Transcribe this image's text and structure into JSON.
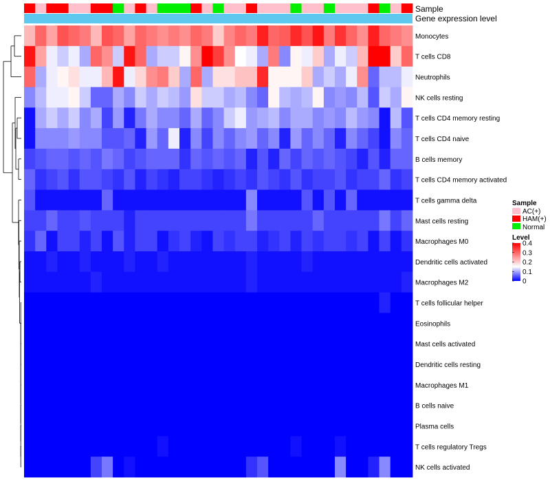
{
  "chart_data": {
    "type": "heatmap",
    "title": "",
    "annotation_tracks": [
      {
        "label": "Sample",
        "key": "sample_groups"
      },
      {
        "label": "Gene expression level",
        "key": "gene_level"
      }
    ],
    "sample_groups": [
      "HAM(+)",
      "AC(+)",
      "HAM(+)",
      "HAM(+)",
      "AC(+)",
      "AC(+)",
      "HAM(+)",
      "HAM(+)",
      "Normal",
      "AC(+)",
      "HAM(+)",
      "AC(+)",
      "Normal",
      "Normal",
      "Normal",
      "HAM(+)",
      "AC(+)",
      "Normal",
      "AC(+)",
      "AC(+)",
      "HAM(+)",
      "AC(+)",
      "AC(+)",
      "AC(+)",
      "Normal",
      "AC(+)",
      "AC(+)",
      "Normal",
      "AC(+)",
      "AC(+)",
      "AC(+)",
      "HAM(+)",
      "Normal",
      "AC(+)",
      "HAM(+)"
    ],
    "gene_level": "constant",
    "rows": [
      "Monocytes",
      "T cells CD8",
      "Neutrophils",
      "NK cells resting",
      "T cells CD4 memory resting",
      "T cells CD4 naive",
      "B cells memory",
      "T cells CD4 memory activated",
      "T cells gamma delta",
      "Mast cells resting",
      "Macrophages M0",
      "Dendritic cells activated",
      "Macrophages M2",
      "T cells follicular helper",
      "Eosinophils",
      "Mast cells activated",
      "Dendritic cells resting",
      "Macrophages M1",
      "B cells naive",
      "Plasma cells",
      "T cells regulatory  Tregs",
      "NK cells activated"
    ],
    "values": [
      [
        0.22,
        0.3,
        0.24,
        0.32,
        0.3,
        0.28,
        0.22,
        0.32,
        0.3,
        0.24,
        0.3,
        0.28,
        0.26,
        0.28,
        0.26,
        0.3,
        0.28,
        0.2,
        0.27,
        0.3,
        0.28,
        0.37,
        0.3,
        0.31,
        0.36,
        0.32,
        0.38,
        0.28,
        0.35,
        0.3,
        0.26,
        0.37,
        0.3,
        0.28,
        0.26
      ],
      [
        0.38,
        0.24,
        0.14,
        0.12,
        0.14,
        0.1,
        0.3,
        0.26,
        0.12,
        0.38,
        0.3,
        0.1,
        0.12,
        0.12,
        0.16,
        0.26,
        0.4,
        0.34,
        0.26,
        0.15,
        0.14,
        0.1,
        0.28,
        0.08,
        0.16,
        0.14,
        0.2,
        0.1,
        0.14,
        0.12,
        0.22,
        0.4,
        0.4,
        0.2,
        0.3
      ],
      [
        0.3,
        0.1,
        0.14,
        0.16,
        0.18,
        0.14,
        0.14,
        0.22,
        0.38,
        0.14,
        0.19,
        0.26,
        0.28,
        0.2,
        0.1,
        0.3,
        0.1,
        0.18,
        0.18,
        0.21,
        0.21,
        0.36,
        0.16,
        0.16,
        0.16,
        0.2,
        0.1,
        0.12,
        0.1,
        0.14,
        0.26,
        0.06,
        0.11,
        0.11,
        0.14
      ],
      [
        0.08,
        0.11,
        0.14,
        0.14,
        0.16,
        0.12,
        0.06,
        0.06,
        0.1,
        0.08,
        0.12,
        0.1,
        0.12,
        0.11,
        0.09,
        0.18,
        0.12,
        0.12,
        0.1,
        0.11,
        0.08,
        0.06,
        0.16,
        0.11,
        0.1,
        0.11,
        0.16,
        0.08,
        0.09,
        0.08,
        0.11,
        0.05,
        0.12,
        0.1,
        0.16
      ],
      [
        0.01,
        0.1,
        0.12,
        0.1,
        0.12,
        0.08,
        0.1,
        0.04,
        0.09,
        0.02,
        0.07,
        0.1,
        0.08,
        0.08,
        0.06,
        0.1,
        0.06,
        0.08,
        0.12,
        0.14,
        0.09,
        0.1,
        0.11,
        0.08,
        0.1,
        0.1,
        0.08,
        0.09,
        0.08,
        0.11,
        0.09,
        0.08,
        0.01,
        0.11,
        0.05
      ],
      [
        0.01,
        0.08,
        0.08,
        0.08,
        0.09,
        0.08,
        0.08,
        0.05,
        0.05,
        0.06,
        0.02,
        0.09,
        0.06,
        0.14,
        0.02,
        0.08,
        0.04,
        0.08,
        0.06,
        0.08,
        0.09,
        0.06,
        0.08,
        0.02,
        0.09,
        0.06,
        0.08,
        0.06,
        0.02,
        0.08,
        0.06,
        0.04,
        0.01,
        0.08,
        0.06
      ],
      [
        0.04,
        0.05,
        0.06,
        0.06,
        0.05,
        0.06,
        0.05,
        0.07,
        0.06,
        0.04,
        0.05,
        0.06,
        0.06,
        0.06,
        0.03,
        0.06,
        0.05,
        0.06,
        0.05,
        0.06,
        0.02,
        0.05,
        0.02,
        0.06,
        0.04,
        0.06,
        0.05,
        0.06,
        0.05,
        0.04,
        0.02,
        0.05,
        0.02,
        0.06,
        0.06
      ],
      [
        0.06,
        0.03,
        0.04,
        0.05,
        0.03,
        0.05,
        0.05,
        0.04,
        0.03,
        0.05,
        0.02,
        0.04,
        0.03,
        0.02,
        0.04,
        0.04,
        0.03,
        0.02,
        0.03,
        0.04,
        0.03,
        0.05,
        0.04,
        0.03,
        0.05,
        0.03,
        0.04,
        0.04,
        0.05,
        0.03,
        0.04,
        0.04,
        0.06,
        0.03,
        0.04
      ],
      [
        0.05,
        0.01,
        0.01,
        0.01,
        0.01,
        0.01,
        0.01,
        0.06,
        0.01,
        0.01,
        0.01,
        0.01,
        0.01,
        0.01,
        0.01,
        0.01,
        0.01,
        0.01,
        0.01,
        0.01,
        0.08,
        0.01,
        0.01,
        0.01,
        0.01,
        0.05,
        0.01,
        0.05,
        0.01,
        0.06,
        0.01,
        0.01,
        0.01,
        0.01,
        0.01
      ],
      [
        0.04,
        0.04,
        0.06,
        0.04,
        0.04,
        0.05,
        0.04,
        0.04,
        0.04,
        0.02,
        0.04,
        0.04,
        0.04,
        0.04,
        0.04,
        0.04,
        0.04,
        0.04,
        0.04,
        0.04,
        0.07,
        0.04,
        0.04,
        0.04,
        0.04,
        0.04,
        0.06,
        0.04,
        0.04,
        0.04,
        0.04,
        0.04,
        0.07,
        0.04,
        0.06
      ],
      [
        0.03,
        0.06,
        0.01,
        0.04,
        0.04,
        0.02,
        0.04,
        0.01,
        0.05,
        0.02,
        0.04,
        0.04,
        0.01,
        0.03,
        0.04,
        0.02,
        0.01,
        0.04,
        0.03,
        0.04,
        0.04,
        0.02,
        0.03,
        0.04,
        0.02,
        0.04,
        0.03,
        0.04,
        0.04,
        0.03,
        0.04,
        0.01,
        0.04,
        0.01,
        0.03
      ],
      [
        0.01,
        0.01,
        0.02,
        0.01,
        0.01,
        0.02,
        0.01,
        0.01,
        0.01,
        0.02,
        0.01,
        0.01,
        0.02,
        0.01,
        0.01,
        0.01,
        0.01,
        0.01,
        0.01,
        0.01,
        0.02,
        0.01,
        0.01,
        0.01,
        0.01,
        0.02,
        0.01,
        0.01,
        0.01,
        0.01,
        0.01,
        0.01,
        0.01,
        0.01,
        0.01
      ],
      [
        0.01,
        0.01,
        0.01,
        0.01,
        0.01,
        0.01,
        0.02,
        0.01,
        0.01,
        0.01,
        0.01,
        0.01,
        0.01,
        0.01,
        0.01,
        0.01,
        0.01,
        0.01,
        0.01,
        0.01,
        0.02,
        0.01,
        0.01,
        0.01,
        0.01,
        0.01,
        0.01,
        0.01,
        0.01,
        0.01,
        0.01,
        0.01,
        0.01,
        0.01,
        0.02
      ],
      [
        0.0,
        0.0,
        0.0,
        0.0,
        0.0,
        0.0,
        0.0,
        0.0,
        0.0,
        0.0,
        0.0,
        0.0,
        0.0,
        0.0,
        0.0,
        0.0,
        0.0,
        0.0,
        0.0,
        0.0,
        0.0,
        0.0,
        0.0,
        0.0,
        0.0,
        0.0,
        0.0,
        0.0,
        0.0,
        0.0,
        0.0,
        0.0,
        0.02,
        0.0,
        0.0
      ],
      [
        0.0,
        0.0,
        0.0,
        0.0,
        0.0,
        0.0,
        0.0,
        0.0,
        0.0,
        0.0,
        0.0,
        0.0,
        0.0,
        0.0,
        0.0,
        0.0,
        0.0,
        0.0,
        0.0,
        0.0,
        0.0,
        0.0,
        0.0,
        0.0,
        0.0,
        0.0,
        0.0,
        0.0,
        0.0,
        0.0,
        0.0,
        0.0,
        0.0,
        0.0,
        0.0
      ],
      [
        0.0,
        0.0,
        0.0,
        0.0,
        0.0,
        0.0,
        0.0,
        0.0,
        0.0,
        0.0,
        0.0,
        0.0,
        0.0,
        0.0,
        0.0,
        0.0,
        0.0,
        0.0,
        0.0,
        0.0,
        0.0,
        0.0,
        0.0,
        0.0,
        0.0,
        0.0,
        0.0,
        0.0,
        0.0,
        0.0,
        0.0,
        0.0,
        0.0,
        0.0,
        0.0
      ],
      [
        0.0,
        0.0,
        0.0,
        0.0,
        0.0,
        0.0,
        0.0,
        0.0,
        0.0,
        0.0,
        0.0,
        0.0,
        0.0,
        0.0,
        0.0,
        0.0,
        0.0,
        0.0,
        0.0,
        0.0,
        0.0,
        0.0,
        0.0,
        0.0,
        0.0,
        0.0,
        0.0,
        0.0,
        0.0,
        0.0,
        0.0,
        0.0,
        0.0,
        0.0,
        0.0
      ],
      [
        0.0,
        0.0,
        0.0,
        0.0,
        0.0,
        0.0,
        0.0,
        0.0,
        0.0,
        0.0,
        0.0,
        0.0,
        0.0,
        0.0,
        0.0,
        0.0,
        0.0,
        0.0,
        0.0,
        0.0,
        0.0,
        0.0,
        0.0,
        0.0,
        0.0,
        0.0,
        0.0,
        0.0,
        0.0,
        0.0,
        0.0,
        0.0,
        0.0,
        0.0,
        0.0
      ],
      [
        0.0,
        0.0,
        0.0,
        0.0,
        0.0,
        0.0,
        0.0,
        0.0,
        0.0,
        0.0,
        0.0,
        0.0,
        0.0,
        0.0,
        0.0,
        0.0,
        0.0,
        0.0,
        0.0,
        0.0,
        0.0,
        0.0,
        0.0,
        0.0,
        0.0,
        0.0,
        0.0,
        0.0,
        0.0,
        0.0,
        0.0,
        0.0,
        0.0,
        0.0,
        0.0
      ],
      [
        0.0,
        0.0,
        0.0,
        0.0,
        0.0,
        0.0,
        0.0,
        0.0,
        0.0,
        0.0,
        0.0,
        0.0,
        0.0,
        0.0,
        0.0,
        0.0,
        0.0,
        0.0,
        0.0,
        0.0,
        0.0,
        0.0,
        0.0,
        0.0,
        0.0,
        0.0,
        0.0,
        0.0,
        0.0,
        0.0,
        0.0,
        0.0,
        0.0,
        0.0,
        0.0
      ],
      [
        0.0,
        0.0,
        0.0,
        0.0,
        0.0,
        0.0,
        0.0,
        0.0,
        0.0,
        0.0,
        0.0,
        0.0,
        0.01,
        0.0,
        0.0,
        0.0,
        0.0,
        0.0,
        0.0,
        0.0,
        0.0,
        0.0,
        0.0,
        0.0,
        0.01,
        0.0,
        0.0,
        0.0,
        0.01,
        0.0,
        0.0,
        0.0,
        0.0,
        0.0,
        0.0
      ],
      [
        0.0,
        0.0,
        0.0,
        0.0,
        0.0,
        0.0,
        0.04,
        0.07,
        0.0,
        0.01,
        0.0,
        0.0,
        0.0,
        0.0,
        0.0,
        0.0,
        0.0,
        0.0,
        0.0,
        0.0,
        0.03,
        0.05,
        0.0,
        0.0,
        0.0,
        0.0,
        0.0,
        0.0,
        0.08,
        0.0,
        0.0,
        0.02,
        0.08,
        0.0,
        0.0
      ]
    ],
    "color_scale": {
      "min": 0,
      "max": 0.4,
      "low": "#0000ff",
      "mid": "#ffffff",
      "high": "#ff0000",
      "mid_value": 0.15
    },
    "group_colors": {
      "AC(+)": "#ffc0cb",
      "HAM(+)": "#ff0000",
      "Normal": "#00ee00"
    },
    "gene_level_color": "#5ec8ee",
    "dendrogram_color": "#000000"
  },
  "legend": {
    "sample": {
      "title": "Sample",
      "entries": [
        {
          "label": "AC(+)",
          "color": "#ffc0cb"
        },
        {
          "label": "HAM(+)",
          "color": "#ff0000"
        },
        {
          "label": "Normal",
          "color": "#00ee00"
        }
      ]
    },
    "level": {
      "title": "Level",
      "ticks": [
        "0.4",
        "0.3",
        "0.2",
        "0.1",
        "0"
      ],
      "tick_values": [
        0.4,
        0.3,
        0.2,
        0.1,
        0
      ]
    }
  }
}
